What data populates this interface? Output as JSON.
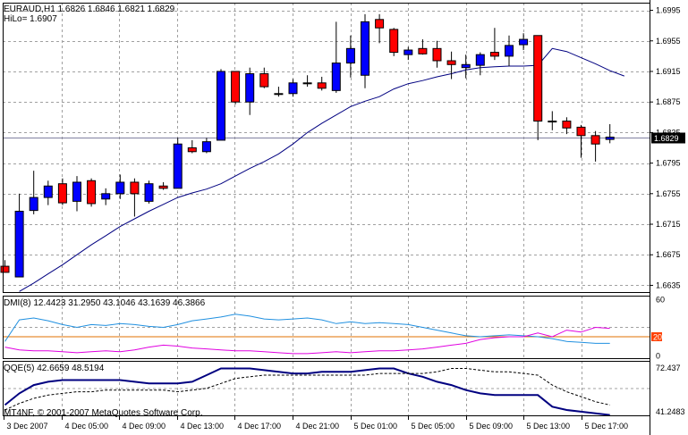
{
  "header": {
    "symbol_line": "EURAUD,H1  1.6826 1.6846 1.6821 1.6829",
    "hilo_label": "HiLo= 1.6907"
  },
  "dmi_panel": {
    "label": "DMI(8) 12.4423 31.2950 43.1046 43.1639 46.3866",
    "scale_labels": [
      "60",
      "20",
      "0"
    ]
  },
  "qqe_panel": {
    "label": "QQE(5) 42.6659 48.5194",
    "scale_labels": [
      "72.437",
      "41.2483"
    ]
  },
  "copyright": "MT4NF, © 2001-2007 MetaQuotes Software Corp.",
  "current_price_tag": "1.6829",
  "colors": {
    "bull": "#0000ff",
    "bear": "#ff0000",
    "ma_line": "#000080",
    "grid": "#a0a0a0",
    "current_price_line": "#8080a0",
    "dmi_cyan": "#2090e0",
    "dmi_magenta": "#e000e0",
    "dmi_level": "#e07000",
    "qqe_main": "#000080",
    "price_tag_bg": "#000000",
    "dmi_level_tag_bg": "#ff4000"
  },
  "chart_data": [
    {
      "type": "candlestick",
      "title": "EURAUD,H1",
      "y_axis_labels": [
        "1.6995",
        "1.6955",
        "1.6915",
        "1.6875",
        "1.6835",
        "1.6795",
        "1.6755",
        "1.6715",
        "1.6675",
        "1.6635"
      ],
      "ylim": [
        1.6625,
        1.7005
      ],
      "x_axis_labels": [
        "3 Dec 2007",
        "4 Dec 05:00",
        "4 Dec 09:00",
        "4 Dec 13:00",
        "4 Dec 17:00",
        "4 Dec 21:00",
        "5 Dec 01:00",
        "5 Dec 05:00",
        "5 Dec 09:00",
        "5 Dec 13:00",
        "5 Dec 17:00"
      ],
      "grid": true,
      "candles": [
        {
          "o": 1.666,
          "h": 1.6668,
          "l": 1.6652,
          "c": 1.6652
        },
        {
          "o": 1.6646,
          "h": 1.6755,
          "l": 1.6646,
          "c": 1.6732
        },
        {
          "o": 1.6733,
          "h": 1.6785,
          "l": 1.6728,
          "c": 1.675
        },
        {
          "o": 1.675,
          "h": 1.6772,
          "l": 1.674,
          "c": 1.6765
        },
        {
          "o": 1.6768,
          "h": 1.6775,
          "l": 1.674,
          "c": 1.6743
        },
        {
          "o": 1.6745,
          "h": 1.6778,
          "l": 1.6732,
          "c": 1.677
        },
        {
          "o": 1.6772,
          "h": 1.6775,
          "l": 1.6738,
          "c": 1.6742
        },
        {
          "o": 1.6748,
          "h": 1.6762,
          "l": 1.674,
          "c": 1.6755
        },
        {
          "o": 1.6755,
          "h": 1.678,
          "l": 1.6748,
          "c": 1.677
        },
        {
          "o": 1.677,
          "h": 1.6775,
          "l": 1.6725,
          "c": 1.6755
        },
        {
          "o": 1.6745,
          "h": 1.6772,
          "l": 1.6742,
          "c": 1.6768
        },
        {
          "o": 1.6765,
          "h": 1.677,
          "l": 1.676,
          "c": 1.6762
        },
        {
          "o": 1.6762,
          "h": 1.6828,
          "l": 1.6762,
          "c": 1.682
        },
        {
          "o": 1.6815,
          "h": 1.6825,
          "l": 1.6808,
          "c": 1.681
        },
        {
          "o": 1.681,
          "h": 1.6828,
          "l": 1.6808,
          "c": 1.6823
        },
        {
          "o": 1.6825,
          "h": 1.6918,
          "l": 1.6825,
          "c": 1.6915
        },
        {
          "o": 1.6915,
          "h": 1.6915,
          "l": 1.6872,
          "c": 1.6875
        },
        {
          "o": 1.6875,
          "h": 1.692,
          "l": 1.6858,
          "c": 1.6912
        },
        {
          "o": 1.6912,
          "h": 1.692,
          "l": 1.6893,
          "c": 1.6895
        },
        {
          "o": 1.6885,
          "h": 1.6895,
          "l": 1.6882,
          "c": 1.6886
        },
        {
          "o": 1.6886,
          "h": 1.6905,
          "l": 1.6882,
          "c": 1.69
        },
        {
          "o": 1.69,
          "h": 1.691,
          "l": 1.6895,
          "c": 1.69
        },
        {
          "o": 1.69,
          "h": 1.6908,
          "l": 1.689,
          "c": 1.6893
        },
        {
          "o": 1.689,
          "h": 1.698,
          "l": 1.6887,
          "c": 1.6926
        },
        {
          "o": 1.6926,
          "h": 1.6962,
          "l": 1.6907,
          "c": 1.6945
        },
        {
          "o": 1.691,
          "h": 1.699,
          "l": 1.6893,
          "c": 1.698
        },
        {
          "o": 1.6983,
          "h": 1.699,
          "l": 1.6952,
          "c": 1.6972
        },
        {
          "o": 1.697,
          "h": 1.6972,
          "l": 1.6935,
          "c": 1.694
        },
        {
          "o": 1.6937,
          "h": 1.6947,
          "l": 1.693,
          "c": 1.6943
        },
        {
          "o": 1.6945,
          "h": 1.6957,
          "l": 1.6937,
          "c": 1.6938
        },
        {
          "o": 1.6945,
          "h": 1.6955,
          "l": 1.692,
          "c": 1.6929
        },
        {
          "o": 1.6929,
          "h": 1.6941,
          "l": 1.6905,
          "c": 1.6924
        },
        {
          "o": 1.692,
          "h": 1.6937,
          "l": 1.6906,
          "c": 1.6924
        },
        {
          "o": 1.6923,
          "h": 1.694,
          "l": 1.691,
          "c": 1.6937
        },
        {
          "o": 1.694,
          "h": 1.6972,
          "l": 1.693,
          "c": 1.6935
        },
        {
          "o": 1.6935,
          "h": 1.6962,
          "l": 1.6922,
          "c": 1.6949
        },
        {
          "o": 1.695,
          "h": 1.6965,
          "l": 1.6943,
          "c": 1.6957
        },
        {
          "o": 1.6962,
          "h": 1.6962,
          "l": 1.6825,
          "c": 1.685
        },
        {
          "o": 1.685,
          "h": 1.6863,
          "l": 1.6838,
          "c": 1.685
        },
        {
          "o": 1.685,
          "h": 1.6855,
          "l": 1.6833,
          "c": 1.6841
        },
        {
          "o": 1.6842,
          "h": 1.6845,
          "l": 1.6802,
          "c": 1.6831
        },
        {
          "o": 1.6831,
          "h": 1.6837,
          "l": 1.6797,
          "c": 1.682
        },
        {
          "o": 1.6826,
          "h": 1.6846,
          "l": 1.6821,
          "c": 1.6829
        }
      ],
      "current_price": 1.6829,
      "moving_average": [
        1.6627,
        1.6638,
        1.665,
        1.6662,
        1.6675,
        1.6688,
        1.67,
        1.6712,
        1.6722,
        1.6732,
        1.6741,
        1.675,
        1.6756,
        1.6761,
        1.6768,
        1.6778,
        1.6788,
        1.6797,
        1.6807,
        1.682,
        1.6835,
        1.6847,
        1.6858,
        1.6869,
        1.6876,
        1.6882,
        1.6892,
        1.6899,
        1.6903,
        1.6908,
        1.6912,
        1.6917,
        1.692,
        1.6921,
        1.6922,
        1.6922,
        1.6923,
        1.6945,
        1.6941,
        1.6933,
        1.6925,
        1.6916,
        1.6909
      ]
    },
    {
      "type": "line",
      "title": "DMI(8)",
      "ylim": [
        0,
        60
      ],
      "level": 20,
      "series": [
        {
          "values": [
            15,
            38,
            40,
            37,
            33,
            30,
            33,
            32,
            34,
            33,
            31,
            30,
            33,
            37,
            39,
            41,
            44,
            42,
            39,
            38,
            39,
            40,
            38,
            34,
            36,
            34,
            35,
            34,
            33,
            30,
            27,
            24,
            21,
            20,
            21,
            22,
            21,
            20,
            18,
            15,
            14,
            13,
            13
          ]
        },
        {
          "values": [
            9,
            6,
            5,
            5,
            4,
            3,
            4,
            5,
            4,
            6,
            9,
            11,
            10,
            8,
            7,
            6,
            5,
            5,
            4,
            3,
            2,
            2,
            3,
            4,
            3,
            4,
            5,
            5,
            6,
            7,
            9,
            11,
            13,
            17,
            19,
            20,
            20,
            24,
            20,
            27,
            25,
            30,
            29
          ]
        }
      ]
    },
    {
      "type": "line",
      "title": "QQE(5)",
      "ylim": [
        41.2483,
        72.437
      ],
      "series": [
        {
          "values": [
            48,
            55,
            60,
            62,
            63,
            63,
            63,
            63,
            63,
            62,
            61,
            61,
            61,
            62,
            66,
            70,
            70,
            70,
            69,
            68,
            67,
            67,
            68,
            68,
            68,
            69,
            70,
            70,
            67,
            65,
            62,
            60,
            57,
            55,
            54,
            54,
            54,
            54,
            47,
            45,
            44,
            43,
            42
          ]
        },
        {
          "values": [
            45,
            49,
            52,
            54,
            55,
            56,
            56,
            57,
            57,
            57,
            57,
            57,
            56,
            57,
            58,
            61,
            64,
            65,
            66,
            66,
            66,
            66,
            66,
            66,
            66,
            66,
            67,
            67,
            67,
            67,
            68,
            70,
            70,
            69,
            68,
            68,
            67,
            66,
            60,
            56,
            53,
            50,
            48
          ]
        }
      ]
    }
  ]
}
